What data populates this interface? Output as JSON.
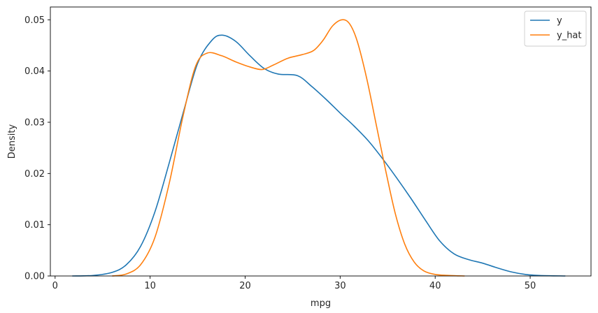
{
  "chart_data": {
    "type": "line",
    "title": "",
    "xlabel": "mpg",
    "ylabel": "Density",
    "xlim": [
      -0.5,
      56.4
    ],
    "ylim": [
      0,
      0.0525
    ],
    "xticks": [
      0,
      10,
      20,
      30,
      40,
      50
    ],
    "xtick_labels": [
      "0",
      "10",
      "20",
      "30",
      "40",
      "50"
    ],
    "yticks": [
      0,
      0.01,
      0.02,
      0.03,
      0.04,
      0.05
    ],
    "ytick_labels": [
      "0.00",
      "0.01",
      "0.02",
      "0.03",
      "0.04",
      "0.05"
    ],
    "grid": false,
    "legend_position": "top-right",
    "series": [
      {
        "name": "y",
        "color": "#1f77b4",
        "points": [
          [
            1.8,
            0.0
          ],
          [
            4.0,
            0.0001
          ],
          [
            6.0,
            0.0007
          ],
          [
            7.5,
            0.0022
          ],
          [
            9.0,
            0.0058
          ],
          [
            10.5,
            0.0125
          ],
          [
            12.0,
            0.022
          ],
          [
            13.5,
            0.032
          ],
          [
            15.0,
            0.0415
          ],
          [
            16.5,
            0.046
          ],
          [
            17.6,
            0.047
          ],
          [
            19.0,
            0.0458
          ],
          [
            20.5,
            0.043
          ],
          [
            22.0,
            0.0405
          ],
          [
            23.5,
            0.0394
          ],
          [
            25.5,
            0.0391
          ],
          [
            27.0,
            0.037
          ],
          [
            28.5,
            0.0345
          ],
          [
            30.0,
            0.0318
          ],
          [
            31.5,
            0.0292
          ],
          [
            33.0,
            0.0263
          ],
          [
            34.5,
            0.0228
          ],
          [
            36.0,
            0.019
          ],
          [
            37.5,
            0.015
          ],
          [
            39.0,
            0.0108
          ],
          [
            40.5,
            0.0068
          ],
          [
            42.0,
            0.0043
          ],
          [
            43.5,
            0.0032
          ],
          [
            45.0,
            0.0025
          ],
          [
            46.5,
            0.0016
          ],
          [
            48.0,
            0.0008
          ],
          [
            49.5,
            0.0003
          ],
          [
            51.0,
            0.0001
          ],
          [
            53.7,
            0.0
          ]
        ]
      },
      {
        "name": "y_hat",
        "color": "#ff7f0e",
        "points": [
          [
            6.0,
            0.0
          ],
          [
            7.5,
            0.0004
          ],
          [
            9.0,
            0.0022
          ],
          [
            10.5,
            0.0075
          ],
          [
            12.0,
            0.018
          ],
          [
            13.5,
            0.0315
          ],
          [
            14.8,
            0.041
          ],
          [
            16.0,
            0.0435
          ],
          [
            17.5,
            0.043
          ],
          [
            19.0,
            0.0418
          ],
          [
            20.5,
            0.0408
          ],
          [
            21.8,
            0.0403
          ],
          [
            23.0,
            0.0412
          ],
          [
            24.5,
            0.0425
          ],
          [
            26.0,
            0.0432
          ],
          [
            27.2,
            0.044
          ],
          [
            28.2,
            0.046
          ],
          [
            29.2,
            0.0488
          ],
          [
            30.2,
            0.05
          ],
          [
            31.0,
            0.0492
          ],
          [
            31.8,
            0.0458
          ],
          [
            32.8,
            0.0385
          ],
          [
            33.8,
            0.0295
          ],
          [
            34.8,
            0.0205
          ],
          [
            35.8,
            0.0122
          ],
          [
            36.8,
            0.0062
          ],
          [
            37.8,
            0.0027
          ],
          [
            38.8,
            0.001
          ],
          [
            40.0,
            0.0003
          ],
          [
            41.5,
            0.0001
          ],
          [
            43.1,
            0.0
          ]
        ]
      }
    ]
  }
}
